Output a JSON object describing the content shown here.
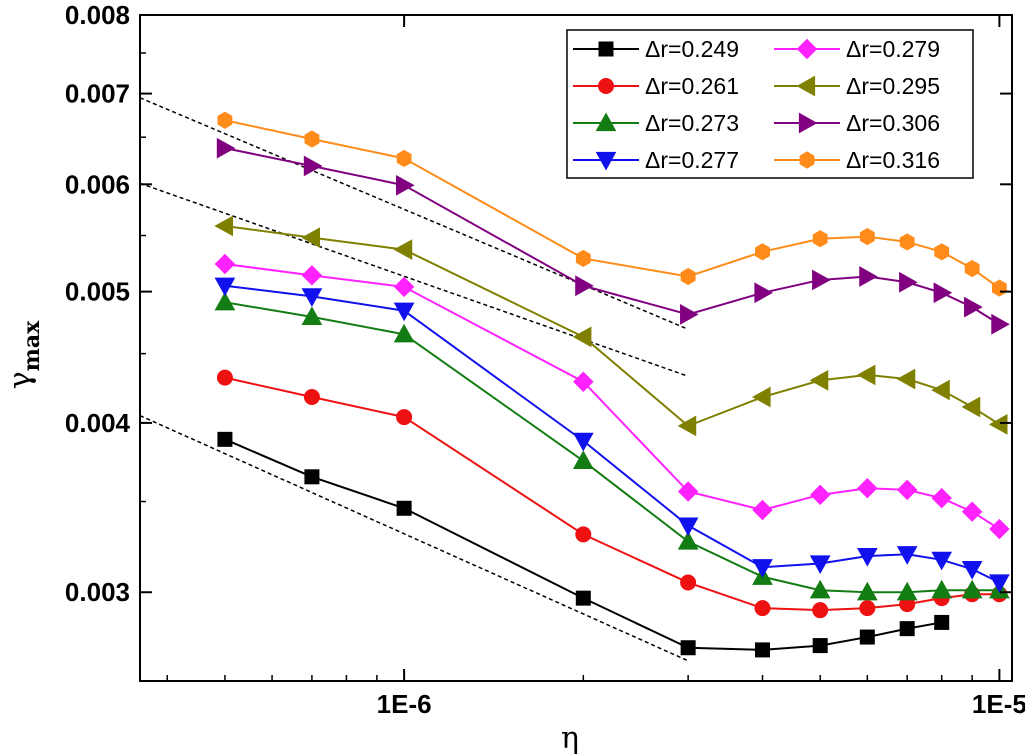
{
  "chart_data": {
    "type": "line",
    "xlabel": "η",
    "ylabel": "γ",
    "ylabel_sub": "max",
    "x_scale": "log",
    "y_scale": "log",
    "xlim": [
      3.6e-07,
      1.05e-05
    ],
    "ylim": [
      0.00258,
      0.008
    ],
    "x_ticks": [
      {
        "value": 1e-06,
        "label": "1E-6"
      },
      {
        "value": 1e-05,
        "label": "1E-5"
      }
    ],
    "y_ticks": [
      {
        "value": 0.003,
        "label": "0.003"
      },
      {
        "value": 0.004,
        "label": "0.004"
      },
      {
        "value": 0.005,
        "label": "0.005"
      },
      {
        "value": 0.006,
        "label": "0.006"
      },
      {
        "value": 0.007,
        "label": "0.007"
      },
      {
        "value": 0.008,
        "label": "0.008"
      }
    ],
    "grid": false,
    "legend_position": "top-right",
    "series": [
      {
        "name": "Δr=0.249",
        "color": "#000000",
        "marker": "square",
        "x": [
          5e-07,
          7e-07,
          1e-06,
          2e-06,
          3e-06,
          4e-06,
          5e-06,
          6e-06,
          7e-06,
          8e-06
        ],
        "y": [
          0.00389,
          0.00365,
          0.00346,
          0.00297,
          0.00273,
          0.00272,
          0.00274,
          0.00278,
          0.00282,
          0.00285
        ]
      },
      {
        "name": "Δr=0.261",
        "color": "#ee1111",
        "marker": "circle",
        "x": [
          5e-07,
          7e-07,
          1e-06,
          2e-06,
          3e-06,
          4e-06,
          5e-06,
          6e-06,
          7e-06,
          8e-06,
          9e-06,
          1e-05
        ],
        "y": [
          0.00432,
          0.00418,
          0.00404,
          0.00331,
          0.00305,
          0.00292,
          0.00291,
          0.00292,
          0.00294,
          0.00297,
          0.00299,
          0.00299
        ]
      },
      {
        "name": "Δr=0.273",
        "color": "#137c13",
        "marker": "triangle-up",
        "x": [
          5e-07,
          7e-07,
          1e-06,
          2e-06,
          3e-06,
          4e-06,
          5e-06,
          6e-06,
          7e-06,
          8e-06,
          9e-06,
          1e-05
        ],
        "y": [
          0.00491,
          0.00479,
          0.00465,
          0.00375,
          0.00327,
          0.00308,
          0.00301,
          0.003,
          0.003,
          0.00301,
          0.00301,
          0.00301
        ]
      },
      {
        "name": "Δr=0.277",
        "color": "#1111ee",
        "marker": "triangle-down",
        "x": [
          5e-07,
          7e-07,
          1e-06,
          2e-06,
          3e-06,
          4e-06,
          5e-06,
          6e-06,
          7e-06,
          8e-06,
          9e-06,
          1e-05
        ],
        "y": [
          0.00505,
          0.00496,
          0.00484,
          0.00388,
          0.00336,
          0.00313,
          0.00315,
          0.00319,
          0.0032,
          0.00317,
          0.00312,
          0.00305
        ]
      },
      {
        "name": "Δr=0.279",
        "color": "#ff22ff",
        "marker": "diamond",
        "x": [
          5e-07,
          7e-07,
          1e-06,
          2e-06,
          3e-06,
          4e-06,
          5e-06,
          6e-06,
          7e-06,
          8e-06,
          9e-06,
          1e-05
        ],
        "y": [
          0.00524,
          0.00514,
          0.00504,
          0.00429,
          0.00356,
          0.00345,
          0.00354,
          0.00358,
          0.00357,
          0.00352,
          0.00344,
          0.00334
        ]
      },
      {
        "name": "Δr=0.295",
        "color": "#808000",
        "marker": "triangle-left",
        "x": [
          5e-07,
          7e-07,
          1e-06,
          2e-06,
          3e-06,
          4e-06,
          5e-06,
          6e-06,
          7e-06,
          8e-06,
          9e-06,
          1e-05
        ],
        "y": [
          0.00559,
          0.00548,
          0.00537,
          0.00463,
          0.00398,
          0.00418,
          0.0043,
          0.00434,
          0.00431,
          0.00423,
          0.00411,
          0.00399
        ]
      },
      {
        "name": "Δr=0.306",
        "color": "#800080",
        "marker": "triangle-right",
        "x": [
          5e-07,
          7e-07,
          1e-06,
          2e-06,
          3e-06,
          4e-06,
          5e-06,
          6e-06,
          7e-06,
          8e-06,
          9e-06,
          1e-05
        ],
        "y": [
          0.00638,
          0.00619,
          0.00599,
          0.00505,
          0.00481,
          0.00499,
          0.0051,
          0.00513,
          0.00508,
          0.00499,
          0.00487,
          0.00473
        ]
      },
      {
        "name": "Δr=0.316",
        "color": "#ff8c1a",
        "marker": "hexagon",
        "x": [
          5e-07,
          7e-07,
          1e-06,
          2e-06,
          3e-06,
          4e-06,
          5e-06,
          6e-06,
          7e-06,
          8e-06,
          9e-06,
          1e-05
        ],
        "y": [
          0.00669,
          0.00648,
          0.00627,
          0.00529,
          0.00513,
          0.00535,
          0.00547,
          0.00549,
          0.00544,
          0.00535,
          0.0052,
          0.00503
        ]
      }
    ],
    "fit_lines": [
      {
        "style": "dashed",
        "color": "#000000",
        "x": [
          3.6e-07,
          3e-06
        ],
        "y": [
          0.00405,
          0.00267
        ]
      },
      {
        "style": "dashed",
        "color": "#000000",
        "x": [
          3.6e-07,
          3e-06
        ],
        "y": [
          0.00601,
          0.00433
        ]
      },
      {
        "style": "dashed",
        "color": "#000000",
        "x": [
          3.6e-07,
          3e-06
        ],
        "y": [
          0.00695,
          0.00469
        ]
      }
    ]
  }
}
